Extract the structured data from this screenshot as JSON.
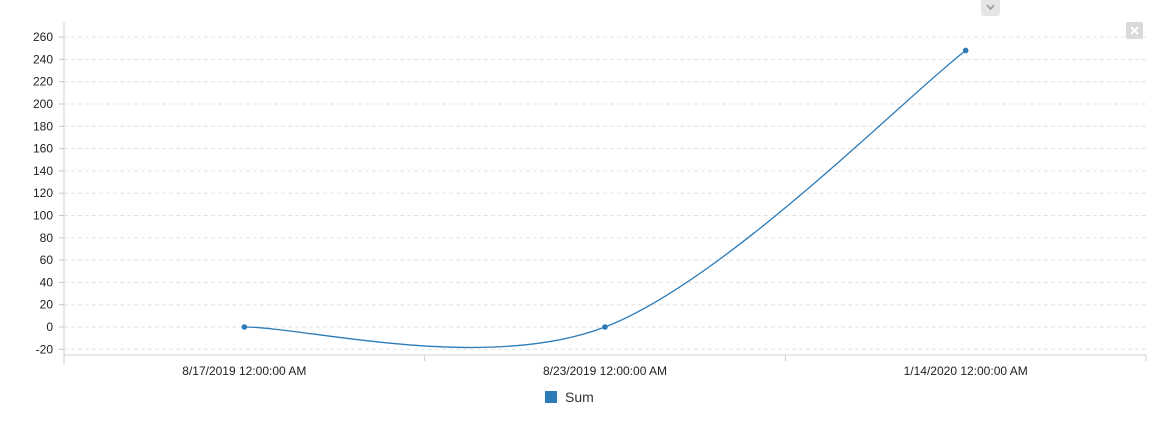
{
  "chart_data": {
    "type": "line",
    "title": "",
    "xlabel": "",
    "ylabel": "",
    "categories": [
      "8/17/2019 12:00:00 AM",
      "8/23/2019 12:00:00 AM",
      "1/14/2020 12:00:00 AM"
    ],
    "series": [
      {
        "name": "Sum",
        "values": [
          0,
          0,
          248
        ],
        "color": "#2b7bb9"
      }
    ],
    "ylim": [
      -30,
      270
    ],
    "yticks": [
      -20,
      0,
      20,
      40,
      60,
      80,
      100,
      120,
      140,
      160,
      180,
      200,
      220,
      240,
      260
    ],
    "interpolation": "smooth",
    "grid": true,
    "legend": "bottom-center"
  },
  "toolbar": {
    "chevron_icon": "chevron-down-icon",
    "close_icon": "close-icon"
  }
}
